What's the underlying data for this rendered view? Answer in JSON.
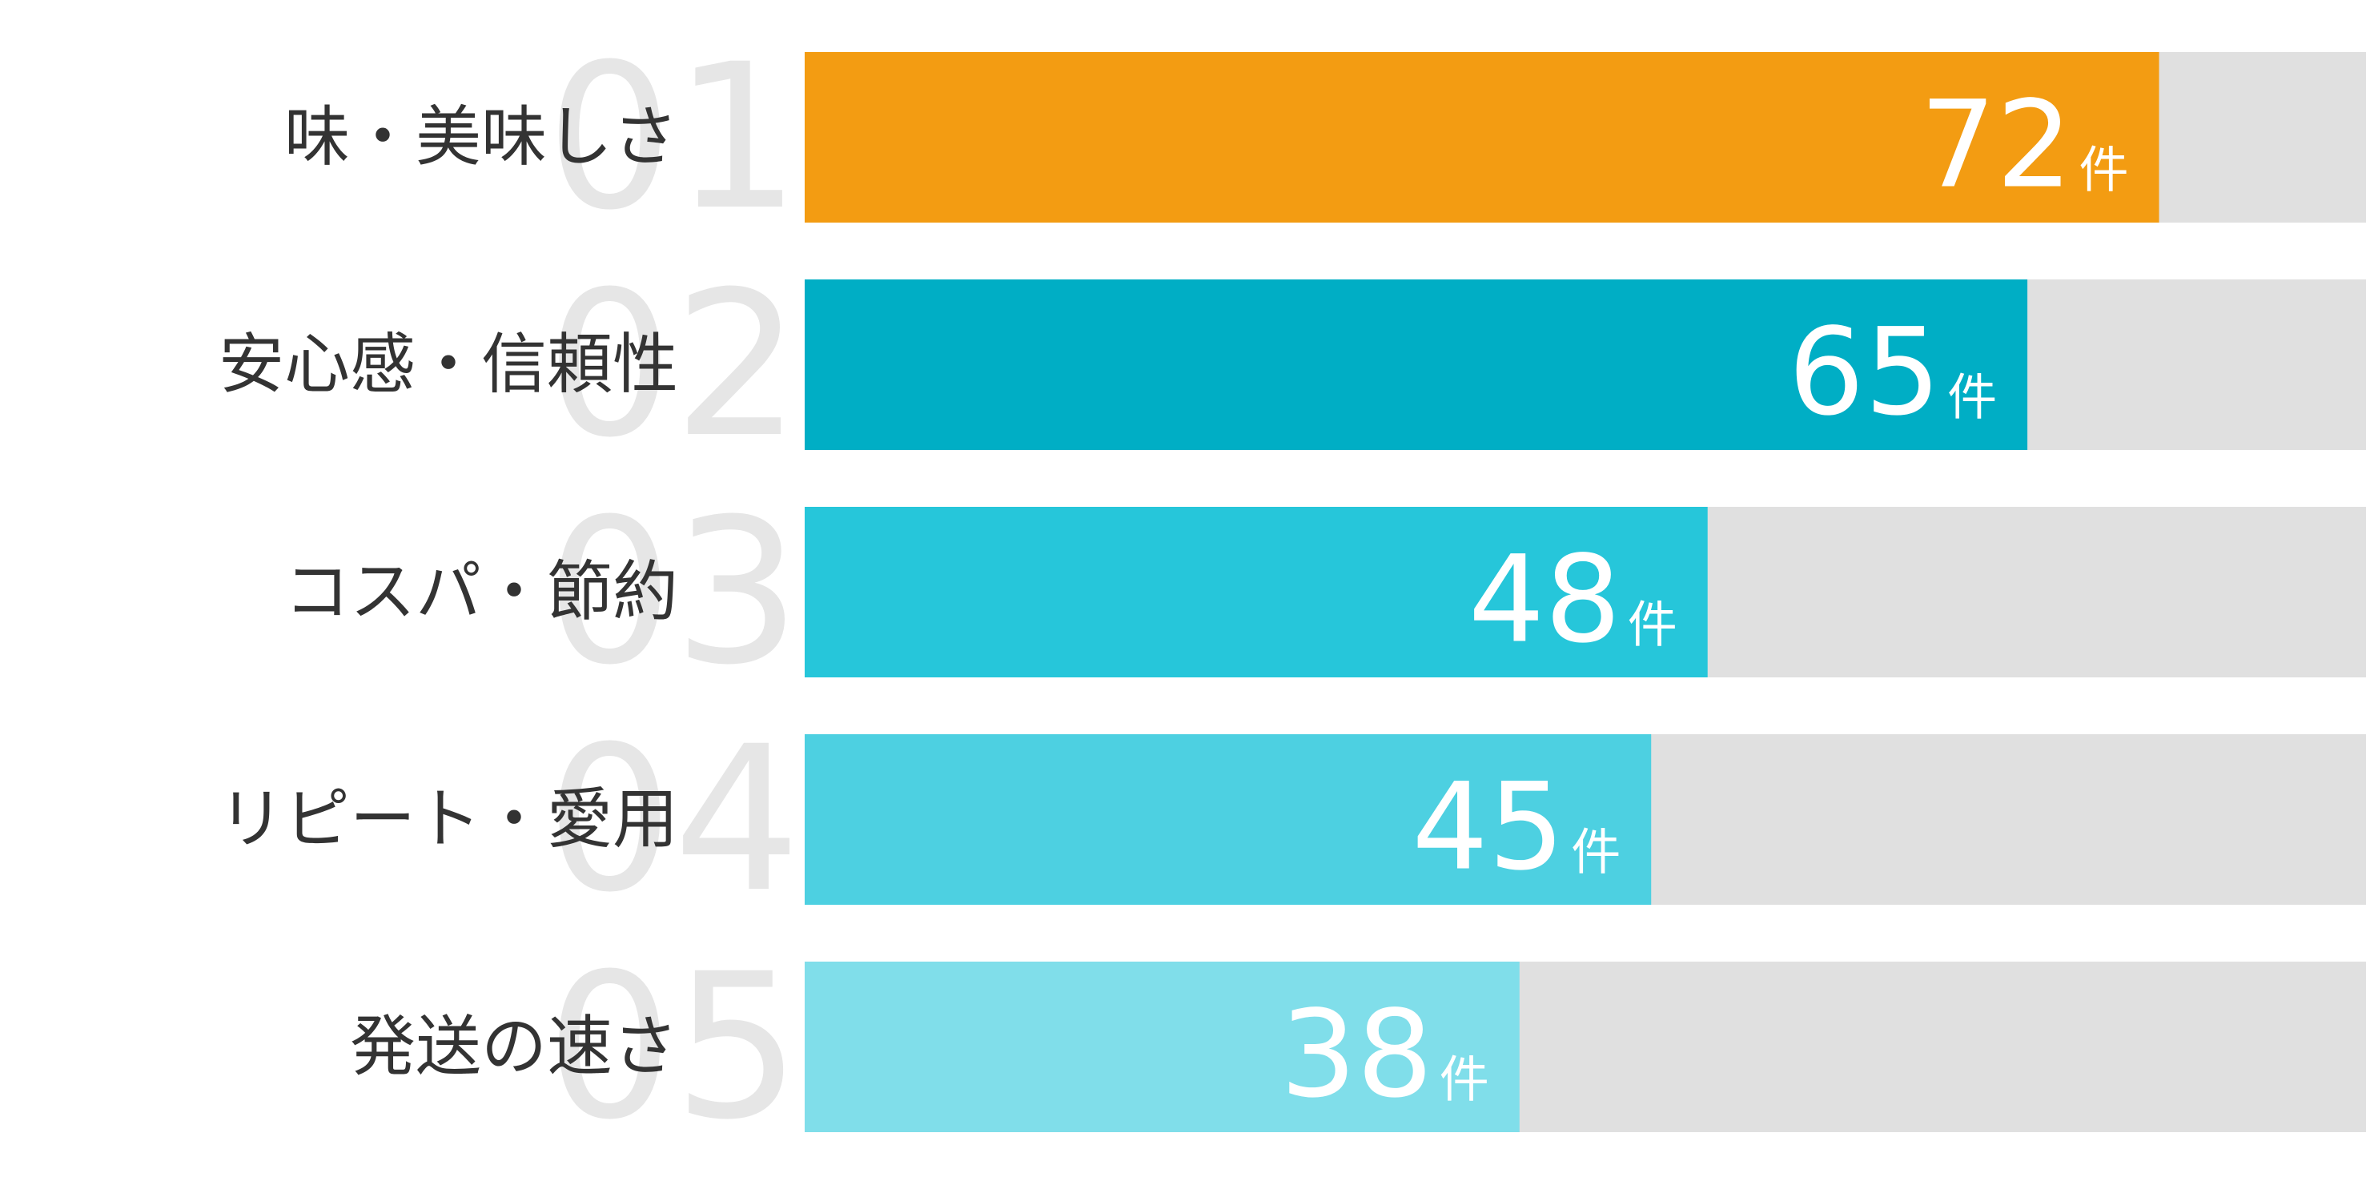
{
  "chart_data": {
    "type": "bar",
    "orientation": "horizontal",
    "categories": [
      "味・美味しさ",
      "安心感・信頼性",
      "コスパ・節約",
      "リピート・愛用",
      "発送の速さ"
    ],
    "ranks": [
      "01",
      "02",
      "03",
      "04",
      "05"
    ],
    "values": [
      72,
      65,
      48,
      45,
      38
    ],
    "unit": "件",
    "colors": [
      "#f39c12",
      "#00aec5",
      "#26c6da",
      "#4dd0e1",
      "#80deea"
    ],
    "track_color": "#e0e0e0",
    "xlim": [
      0,
      83
    ]
  }
}
